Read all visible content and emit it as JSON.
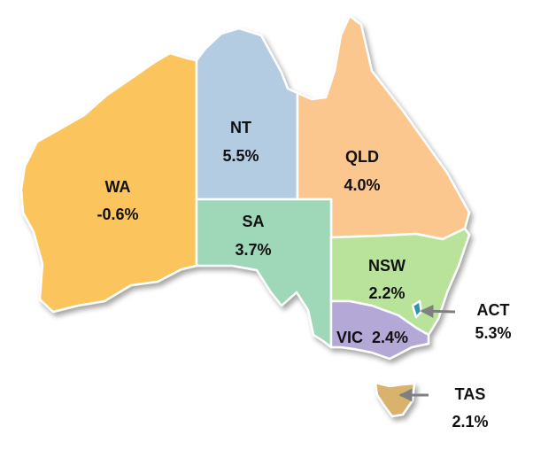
{
  "map": {
    "regions": [
      {
        "code": "WA",
        "label": "WA",
        "value": "-0.6%",
        "color": "#FBC45C"
      },
      {
        "code": "NT",
        "label": "NT",
        "value": "5.5%",
        "color": "#B4CCE2"
      },
      {
        "code": "QLD",
        "label": "QLD",
        "value": "4.0%",
        "color": "#FBC78E"
      },
      {
        "code": "SA",
        "label": "SA",
        "value": "3.7%",
        "color": "#9ED8B8"
      },
      {
        "code": "NSW",
        "label": "NSW",
        "value": "2.2%",
        "color": "#B9E39A"
      },
      {
        "code": "VIC",
        "label": "VIC",
        "value": "2.4%",
        "color": "#B3A8D6"
      },
      {
        "code": "ACT",
        "label": "ACT",
        "value": "5.3%",
        "color": "#2E93B5"
      },
      {
        "code": "TAS",
        "label": "TAS",
        "value": "2.1%",
        "color": "#D9B36E"
      }
    ],
    "arrow_color": "#7F7F7F"
  }
}
